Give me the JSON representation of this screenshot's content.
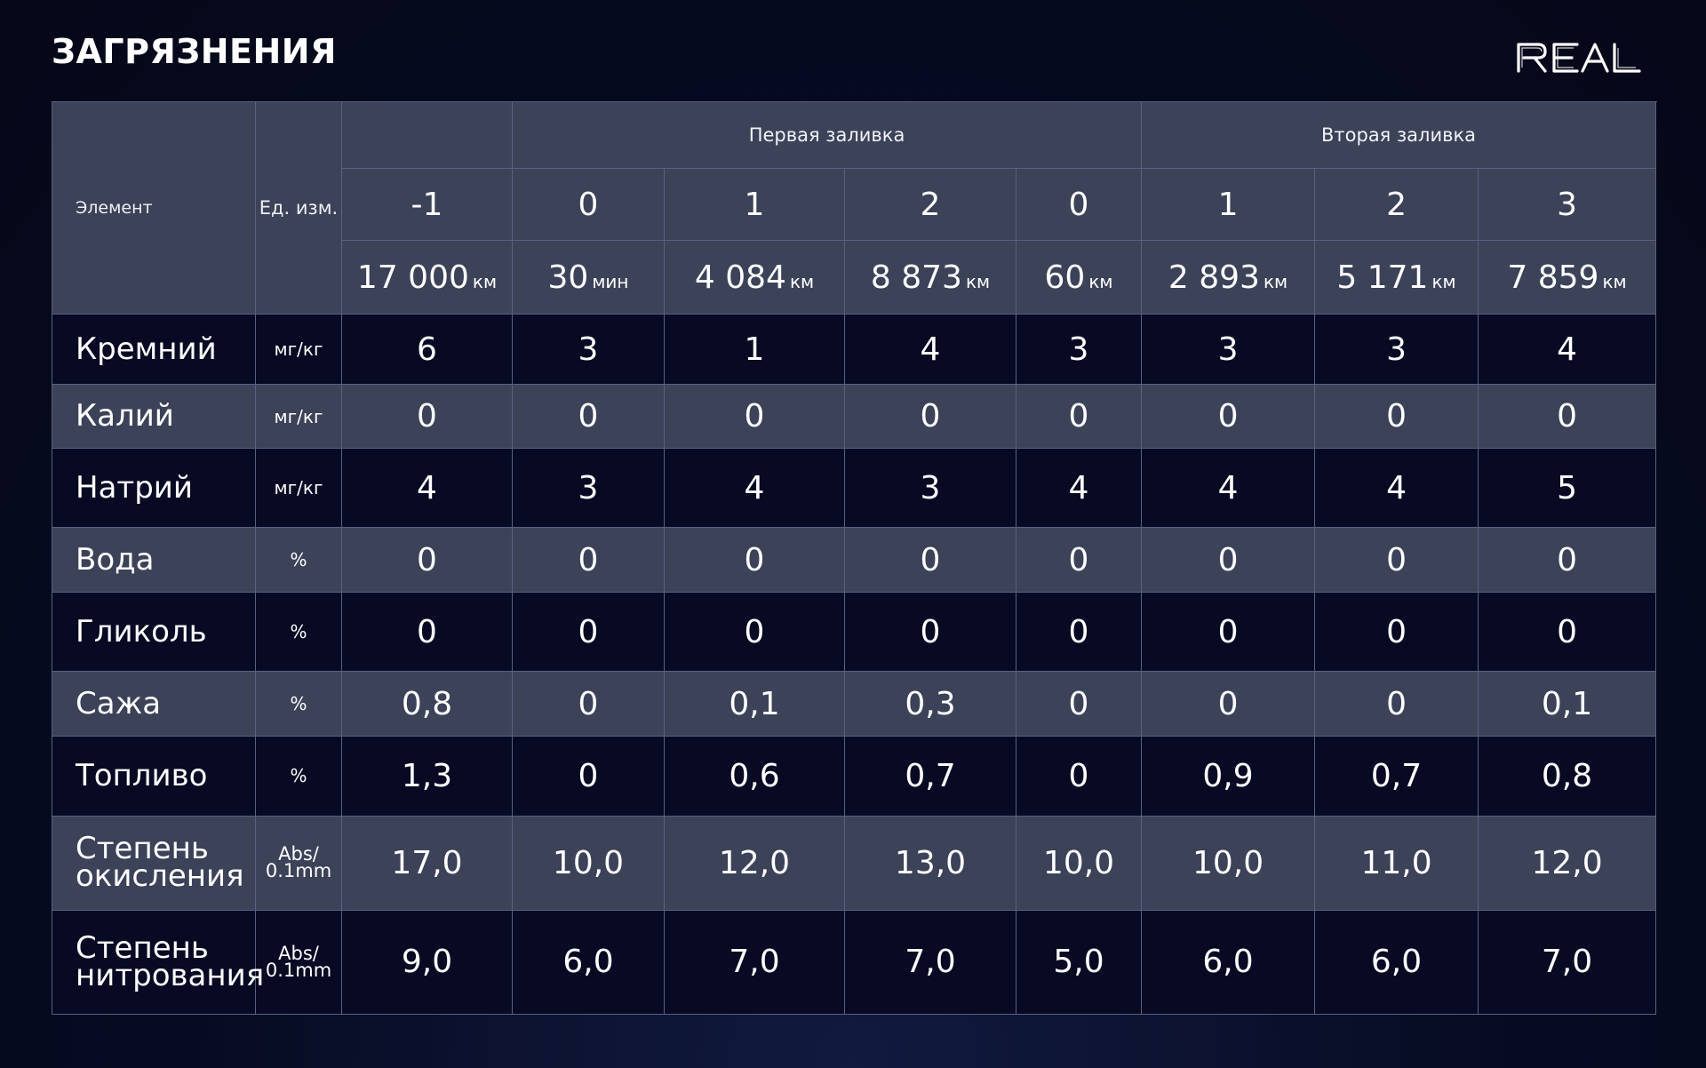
{
  "title": "ЗАГРЯЗНЕНИЯ",
  "logo_text": "REAL",
  "header": {
    "element_label": "Элемент",
    "unit_label": "Ед. изм.",
    "group_first": "Первая заливка",
    "group_second": "Вторая заливка",
    "samples": [
      {
        "num": "-1",
        "dist": "17 000",
        "dist_unit": "км"
      },
      {
        "num": "0",
        "dist": "30",
        "dist_unit": "мин"
      },
      {
        "num": "1",
        "dist": "4 084",
        "dist_unit": "км"
      },
      {
        "num": "2",
        "dist": "8 873",
        "dist_unit": "км"
      },
      {
        "num": "0",
        "dist": "60",
        "dist_unit": "км"
      },
      {
        "num": "1",
        "dist": "2 893",
        "dist_unit": "км"
      },
      {
        "num": "2",
        "dist": "5 171",
        "dist_unit": "км"
      },
      {
        "num": "3",
        "dist": "7 859",
        "dist_unit": "км"
      }
    ]
  },
  "rows": [
    {
      "element": "Кремний",
      "unit": "мг/кг",
      "values": [
        "6",
        "3",
        "1",
        "4",
        "3",
        "3",
        "3",
        "4"
      ]
    },
    {
      "element": "Калий",
      "unit": "мг/кг",
      "values": [
        "0",
        "0",
        "0",
        "0",
        "0",
        "0",
        "0",
        "0"
      ]
    },
    {
      "element": "Натрий",
      "unit": "мг/кг",
      "values": [
        "4",
        "3",
        "4",
        "3",
        "4",
        "4",
        "4",
        "5"
      ]
    },
    {
      "element": "Вода",
      "unit": "%",
      "values": [
        "0",
        "0",
        "0",
        "0",
        "0",
        "0",
        "0",
        "0"
      ]
    },
    {
      "element": "Гликоль",
      "unit": "%",
      "values": [
        "0",
        "0",
        "0",
        "0",
        "0",
        "0",
        "0",
        "0"
      ]
    },
    {
      "element": "Сажа",
      "unit": "%",
      "values": [
        "0,8",
        "0",
        "0,1",
        "0,3",
        "0",
        "0",
        "0",
        "0,1"
      ]
    },
    {
      "element": "Топливо",
      "unit": "%",
      "values": [
        "1,3",
        "0",
        "0,6",
        "0,7",
        "0",
        "0,9",
        "0,7",
        "0,8"
      ]
    },
    {
      "element": "Степень окисления",
      "unit": "Abs/ 0.1mm",
      "values": [
        "17,0",
        "10,0",
        "12,0",
        "13,0",
        "10,0",
        "10,0",
        "11,0",
        "12,0"
      ]
    },
    {
      "element": "Степень нитрования",
      "unit": "Abs/ 0.1mm",
      "values": [
        "9,0",
        "6,0",
        "7,0",
        "7,0",
        "5,0",
        "6,0",
        "6,0",
        "7,0"
      ]
    }
  ]
}
